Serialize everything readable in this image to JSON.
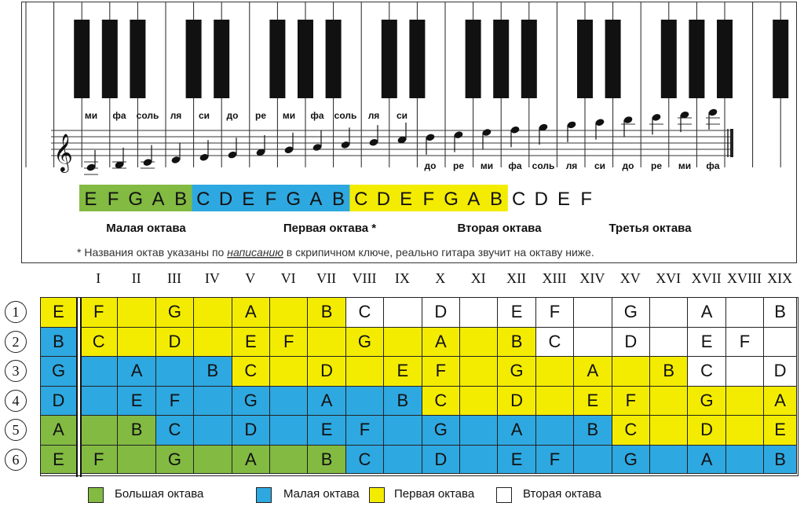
{
  "colors": {
    "green": "#82ba42",
    "blue": "#2ea8e0",
    "yellow": "#f4ec00",
    "white": "#ffffff"
  },
  "staff_notes": [
    {
      "label": "ми",
      "pos": "above",
      "ledger": 3
    },
    {
      "label": "фа",
      "pos": "above",
      "ledger": 2
    },
    {
      "label": "соль",
      "pos": "above",
      "ledger": 2
    },
    {
      "label": "ля",
      "pos": "above",
      "ledger": 1
    },
    {
      "label": "си",
      "pos": "above",
      "ledger": 1
    },
    {
      "label": "до",
      "pos": "above",
      "ledger": 1
    },
    {
      "label": "ре",
      "pos": "above",
      "ledger": 0
    },
    {
      "label": "ми",
      "pos": "above",
      "ledger": 0
    },
    {
      "label": "фа",
      "pos": "above",
      "ledger": 0
    },
    {
      "label": "соль",
      "pos": "above",
      "ledger": 0
    },
    {
      "label": "ля",
      "pos": "above",
      "ledger": 0
    },
    {
      "label": "си",
      "pos": "above",
      "ledger": 0
    },
    {
      "label": "до",
      "pos": "below",
      "ledger": 0
    },
    {
      "label": "ре",
      "pos": "below",
      "ledger": 0
    },
    {
      "label": "ми",
      "pos": "below",
      "ledger": 0
    },
    {
      "label": "фа",
      "pos": "below",
      "ledger": 0
    },
    {
      "label": "соль",
      "pos": "below",
      "ledger": 0
    },
    {
      "label": "ля",
      "pos": "below",
      "ledger": 0
    },
    {
      "label": "си",
      "pos": "below",
      "ledger": 0
    },
    {
      "label": "до",
      "pos": "below",
      "ledger": 1
    },
    {
      "label": "ре",
      "pos": "below",
      "ledger": 1
    },
    {
      "label": "ми",
      "pos": "below",
      "ledger": 2
    },
    {
      "label": "фа",
      "pos": "below",
      "ledger": 2
    }
  ],
  "band": [
    {
      "letter": "E",
      "color": "green"
    },
    {
      "letter": "F",
      "color": "green"
    },
    {
      "letter": "G",
      "color": "green"
    },
    {
      "letter": "A",
      "color": "green"
    },
    {
      "letter": "B",
      "color": "green"
    },
    {
      "letter": "C",
      "color": "blue"
    },
    {
      "letter": "D",
      "color": "blue"
    },
    {
      "letter": "E",
      "color": "blue"
    },
    {
      "letter": "F",
      "color": "blue"
    },
    {
      "letter": "G",
      "color": "blue"
    },
    {
      "letter": "A",
      "color": "blue"
    },
    {
      "letter": "B",
      "color": "blue"
    },
    {
      "letter": "C",
      "color": "yellow"
    },
    {
      "letter": "D",
      "color": "yellow"
    },
    {
      "letter": "E",
      "color": "yellow"
    },
    {
      "letter": "F",
      "color": "yellow"
    },
    {
      "letter": "G",
      "color": "yellow"
    },
    {
      "letter": "A",
      "color": "yellow"
    },
    {
      "letter": "B",
      "color": "yellow"
    },
    {
      "letter": "C",
      "color": "white"
    },
    {
      "letter": "D",
      "color": "white"
    },
    {
      "letter": "E",
      "color": "white"
    },
    {
      "letter": "F",
      "color": "white"
    }
  ],
  "octave_labels": [
    "Малая октава",
    "Первая октава *",
    "Вторая октава",
    "Третья октава"
  ],
  "footnote_parts": [
    "* Названия октав указаны по ",
    "написанию",
    " в скрипичном ключе, реально гитара звучит на октаву ниже."
  ],
  "frets": [
    "I",
    "II",
    "III",
    "IV",
    "V",
    "VI",
    "VII",
    "VIII",
    "IX",
    "X",
    "XI",
    "XII",
    "XIII",
    "XIV",
    "XV",
    "XVI",
    "XVII",
    "XVIII",
    "XIX"
  ],
  "string_numbers": [
    "1",
    "2",
    "3",
    "4",
    "5",
    "6"
  ],
  "grid": [
    [
      [
        "E",
        "yellow"
      ],
      [
        "F",
        "yellow"
      ],
      [
        "",
        "yellow"
      ],
      [
        "G",
        "yellow"
      ],
      [
        "",
        "yellow"
      ],
      [
        "A",
        "yellow"
      ],
      [
        "",
        "yellow"
      ],
      [
        "B",
        "yellow"
      ],
      [
        "C",
        "white"
      ],
      [
        "",
        "white"
      ],
      [
        "D",
        "white"
      ],
      [
        "",
        "white"
      ],
      [
        "E",
        "white"
      ],
      [
        "F",
        "white"
      ],
      [
        "",
        "white"
      ],
      [
        "G",
        "white"
      ],
      [
        "",
        "white"
      ],
      [
        "A",
        "white"
      ],
      [
        "",
        "white"
      ],
      [
        "B",
        "white"
      ]
    ],
    [
      [
        "B",
        "blue"
      ],
      [
        "C",
        "yellow"
      ],
      [
        "",
        "yellow"
      ],
      [
        "D",
        "yellow"
      ],
      [
        "",
        "yellow"
      ],
      [
        "E",
        "yellow"
      ],
      [
        "F",
        "yellow"
      ],
      [
        "",
        "yellow"
      ],
      [
        "G",
        "yellow"
      ],
      [
        "",
        "yellow"
      ],
      [
        "A",
        "yellow"
      ],
      [
        "",
        "yellow"
      ],
      [
        "B",
        "yellow"
      ],
      [
        "C",
        "white"
      ],
      [
        "",
        "white"
      ],
      [
        "D",
        "white"
      ],
      [
        "",
        "white"
      ],
      [
        "E",
        "white"
      ],
      [
        "F",
        "white"
      ],
      [
        "",
        "white"
      ]
    ],
    [
      [
        "G",
        "blue"
      ],
      [
        "",
        "blue"
      ],
      [
        "A",
        "blue"
      ],
      [
        "",
        "blue"
      ],
      [
        "B",
        "blue"
      ],
      [
        "C",
        "yellow"
      ],
      [
        "",
        "yellow"
      ],
      [
        "D",
        "yellow"
      ],
      [
        "",
        "yellow"
      ],
      [
        "E",
        "yellow"
      ],
      [
        "F",
        "yellow"
      ],
      [
        "",
        "yellow"
      ],
      [
        "G",
        "yellow"
      ],
      [
        "",
        "yellow"
      ],
      [
        "A",
        "yellow"
      ],
      [
        "",
        "yellow"
      ],
      [
        "B",
        "yellow"
      ],
      [
        "C",
        "white"
      ],
      [
        "",
        "white"
      ],
      [
        "D",
        "white"
      ]
    ],
    [
      [
        "D",
        "blue"
      ],
      [
        "",
        "blue"
      ],
      [
        "E",
        "blue"
      ],
      [
        "F",
        "blue"
      ],
      [
        "",
        "blue"
      ],
      [
        "G",
        "blue"
      ],
      [
        "",
        "blue"
      ],
      [
        "A",
        "blue"
      ],
      [
        "",
        "blue"
      ],
      [
        "B",
        "blue"
      ],
      [
        "C",
        "yellow"
      ],
      [
        "",
        "yellow"
      ],
      [
        "D",
        "yellow"
      ],
      [
        "",
        "yellow"
      ],
      [
        "E",
        "yellow"
      ],
      [
        "F",
        "yellow"
      ],
      [
        "",
        "yellow"
      ],
      [
        "G",
        "yellow"
      ],
      [
        "",
        "yellow"
      ],
      [
        "A",
        "yellow"
      ]
    ],
    [
      [
        "A",
        "green"
      ],
      [
        "",
        "green"
      ],
      [
        "B",
        "green"
      ],
      [
        "C",
        "blue"
      ],
      [
        "",
        "blue"
      ],
      [
        "D",
        "blue"
      ],
      [
        "",
        "blue"
      ],
      [
        "E",
        "blue"
      ],
      [
        "F",
        "blue"
      ],
      [
        "",
        "blue"
      ],
      [
        "G",
        "blue"
      ],
      [
        "",
        "blue"
      ],
      [
        "A",
        "blue"
      ],
      [
        "",
        "blue"
      ],
      [
        "B",
        "blue"
      ],
      [
        "C",
        "yellow"
      ],
      [
        "",
        "yellow"
      ],
      [
        "D",
        "yellow"
      ],
      [
        "",
        "yellow"
      ],
      [
        "E",
        "yellow"
      ]
    ],
    [
      [
        "E",
        "green"
      ],
      [
        "F",
        "green"
      ],
      [
        "",
        "green"
      ],
      [
        "G",
        "green"
      ],
      [
        "",
        "green"
      ],
      [
        "A",
        "green"
      ],
      [
        "",
        "green"
      ],
      [
        "B",
        "green"
      ],
      [
        "C",
        "blue"
      ],
      [
        "",
        "blue"
      ],
      [
        "D",
        "blue"
      ],
      [
        "",
        "blue"
      ],
      [
        "E",
        "blue"
      ],
      [
        "F",
        "blue"
      ],
      [
        "",
        "blue"
      ],
      [
        "G",
        "blue"
      ],
      [
        "",
        "blue"
      ],
      [
        "A",
        "blue"
      ],
      [
        "",
        "blue"
      ],
      [
        "B",
        "blue"
      ]
    ]
  ],
  "legend": [
    {
      "label": "Большая октава",
      "color": "green"
    },
    {
      "label": "Малая октава",
      "color": "blue"
    },
    {
      "label": "Первая октава",
      "color": "yellow"
    },
    {
      "label": "Вторая октава",
      "color": "white"
    }
  ]
}
